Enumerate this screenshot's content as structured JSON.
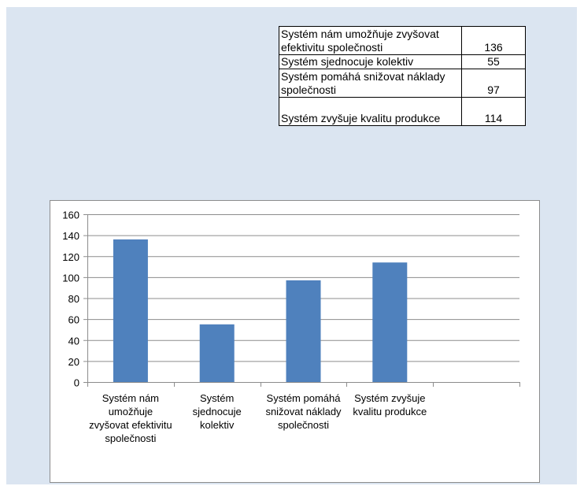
{
  "table": {
    "rows": [
      {
        "label": "Systém nám umožňuje zvyšovat efektivitu společnosti",
        "value": "136"
      },
      {
        "label": "Systém sjednocuje kolektiv",
        "value": "55"
      },
      {
        "label": "Systém pomáhá snižovat náklady společnosti",
        "value": "97"
      },
      {
        "label": "Systém zvyšuje kvalitu produkce",
        "value": "114"
      }
    ]
  },
  "chart_data": {
    "type": "bar",
    "categories": [
      "Systém nám umožňuje zvyšovat efektivitu společnosti",
      "Systém sjednocuje kolektiv",
      "Systém pomáhá snižovat náklady společnosti",
      "Systém zvyšuje kvalitu produkce"
    ],
    "values": [
      136,
      55,
      97,
      114
    ],
    "title": "",
    "xlabel": "",
    "ylabel": "",
    "ylim": [
      0,
      160
    ],
    "yticks": [
      "0",
      "20",
      "40",
      "60",
      "80",
      "100",
      "120",
      "140",
      "160"
    ],
    "grid": true,
    "legend": "none",
    "bar_color": "#4f81bd"
  },
  "colors": {
    "panel_background": "#dbe5f1",
    "gridline": "#8c8c8c"
  }
}
